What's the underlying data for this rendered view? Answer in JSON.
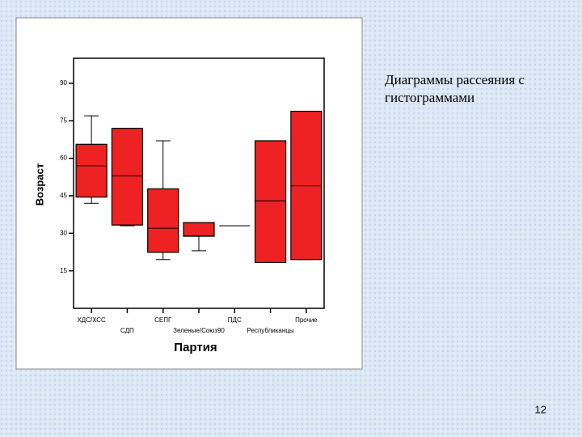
{
  "chart_data": {
    "type": "box",
    "x_label": "Партия",
    "y_label": "Возраст",
    "categories": [
      "ХДС/ХСС",
      "СДП",
      "СЕПГ",
      "Зеленые/Союз90",
      "ПДС",
      "Республиканцы",
      "Прочие"
    ],
    "color": "#ee2222",
    "min": [
      42,
      33,
      19.5,
      23,
      33,
      18.3,
      19.5
    ],
    "q1": [
      44.5,
      33.3,
      22.4,
      28.8,
      33,
      18.3,
      19.5
    ],
    "median": [
      57,
      53,
      32,
      29,
      33,
      43,
      49
    ],
    "q3": [
      65.6,
      72,
      47.8,
      34.3,
      33,
      67,
      78.8
    ],
    "max": [
      77,
      72,
      67,
      34.3,
      33,
      67,
      78.8
    ],
    "ylim": [
      0,
      100
    ],
    "yticks": [
      15,
      30,
      45,
      60,
      75,
      90
    ]
  },
  "slide": {
    "caption": "Диаграммы рассеяния с гистограммами",
    "page_number": "12"
  }
}
